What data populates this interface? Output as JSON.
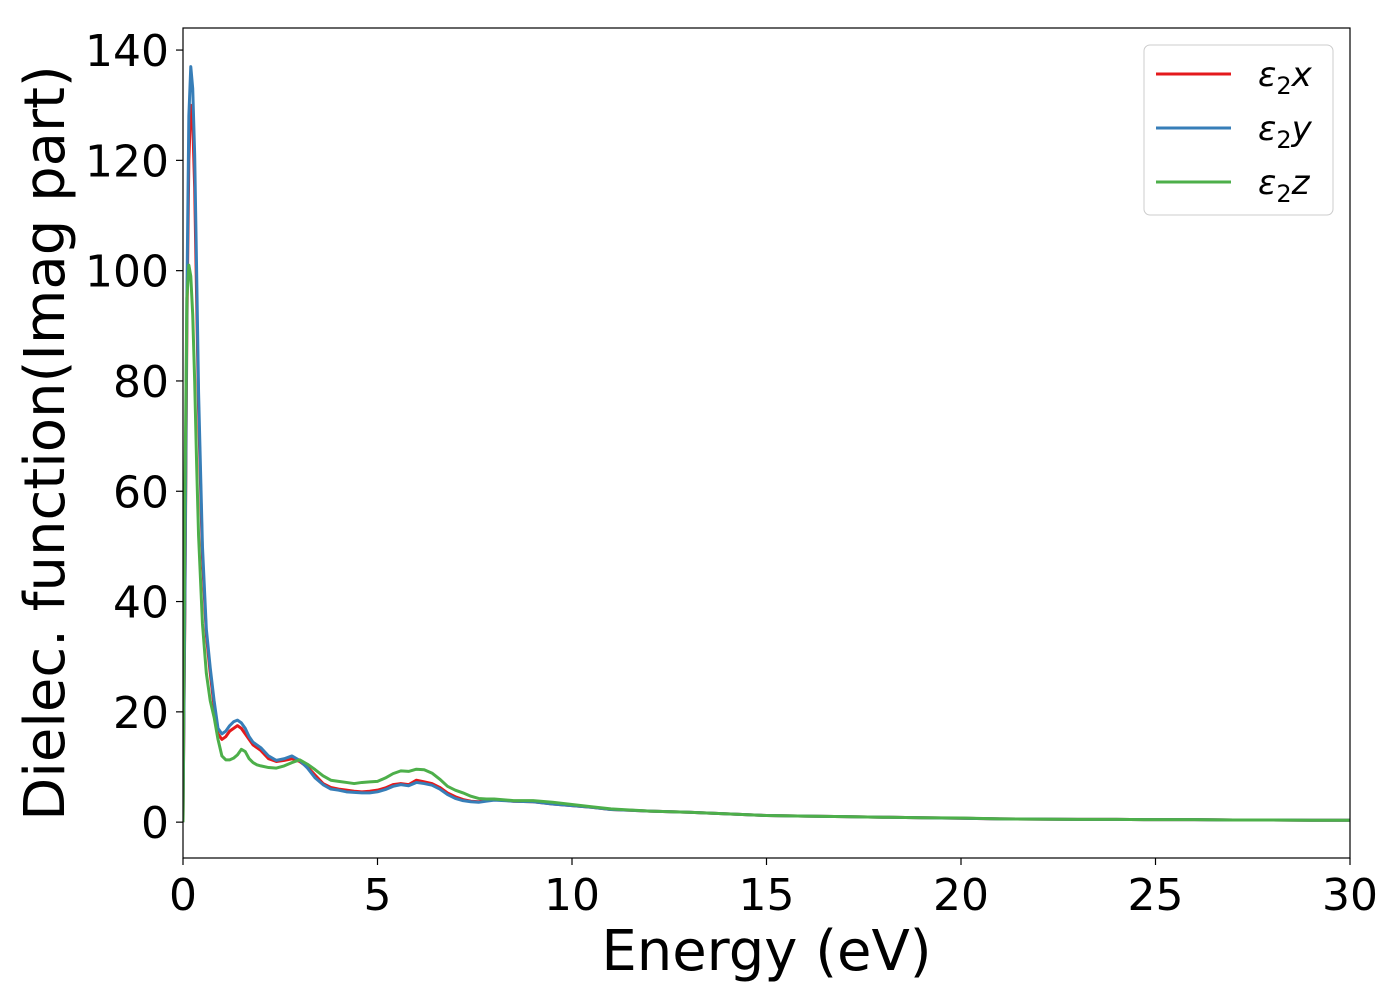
{
  "chart_data": {
    "type": "line",
    "xlabel": "Energy (eV)",
    "ylabel": "Dielec. function(Imag part)",
    "xlim": [
      0,
      30
    ],
    "ylim": [
      -6.5,
      144
    ],
    "xticks": [
      0,
      5,
      10,
      15,
      20,
      25,
      30
    ],
    "yticks": [
      0,
      20,
      40,
      60,
      80,
      100,
      120,
      140
    ],
    "legend_position": "top-right",
    "series": [
      {
        "name": "ε2x",
        "legend_base": "ε",
        "legend_sub": "2",
        "legend_suffix": "x",
        "color": "#e41a1c",
        "x": [
          0,
          0.05,
          0.1,
          0.15,
          0.2,
          0.25,
          0.3,
          0.35,
          0.4,
          0.5,
          0.6,
          0.7,
          0.8,
          0.9,
          1.0,
          1.1,
          1.2,
          1.3,
          1.4,
          1.5,
          1.6,
          1.7,
          1.8,
          1.9,
          2.0,
          2.2,
          2.4,
          2.6,
          2.8,
          3.0,
          3.2,
          3.4,
          3.6,
          3.8,
          4.0,
          4.2,
          4.4,
          4.6,
          4.8,
          5.0,
          5.2,
          5.4,
          5.6,
          5.8,
          6.0,
          6.2,
          6.4,
          6.6,
          6.8,
          7.0,
          7.2,
          7.4,
          7.6,
          7.8,
          8.0,
          8.5,
          9.0,
          9.5,
          10.0,
          10.5,
          11,
          12,
          13,
          14,
          15,
          16,
          17,
          18,
          19,
          20,
          21,
          22,
          23,
          24,
          25,
          26,
          27,
          28,
          29,
          30
        ],
        "y": [
          0,
          40,
          90,
          120,
          130,
          127,
          115,
          95,
          75,
          48,
          34,
          27,
          21,
          16,
          15,
          15.5,
          16.5,
          17,
          17.5,
          17,
          16,
          15,
          14,
          13.5,
          13,
          11.5,
          11,
          11.2,
          11.5,
          11,
          10,
          8.5,
          7,
          6.3,
          6.0,
          5.8,
          5.6,
          5.5,
          5.6,
          5.8,
          6.2,
          6.8,
          7.0,
          6.8,
          7.6,
          7.3,
          7.0,
          6.3,
          5.3,
          4.6,
          4.1,
          3.8,
          3.7,
          3.9,
          4.1,
          3.8,
          3.7,
          3.3,
          3.0,
          2.7,
          2.3,
          2.0,
          1.8,
          1.5,
          1.2,
          1.1,
          1.0,
          0.9,
          0.8,
          0.7,
          0.6,
          0.55,
          0.5,
          0.5,
          0.45,
          0.45,
          0.4,
          0.4,
          0.35,
          0.35
        ]
      },
      {
        "name": "ε2y",
        "legend_base": "ε",
        "legend_sub": "2",
        "legend_suffix": "y",
        "color": "#377eb8",
        "x": [
          0,
          0.05,
          0.1,
          0.15,
          0.2,
          0.25,
          0.3,
          0.35,
          0.4,
          0.5,
          0.6,
          0.7,
          0.8,
          0.9,
          1.0,
          1.1,
          1.2,
          1.3,
          1.4,
          1.5,
          1.6,
          1.7,
          1.8,
          1.9,
          2.0,
          2.2,
          2.4,
          2.6,
          2.8,
          3.0,
          3.2,
          3.4,
          3.6,
          3.8,
          4.0,
          4.2,
          4.4,
          4.6,
          4.8,
          5.0,
          5.2,
          5.4,
          5.6,
          5.8,
          6.0,
          6.2,
          6.4,
          6.6,
          6.8,
          7.0,
          7.2,
          7.4,
          7.6,
          7.8,
          8.0,
          8.5,
          9.0,
          9.5,
          10.0,
          10.5,
          11,
          12,
          13,
          14,
          15,
          16,
          17,
          18,
          19,
          20,
          21,
          22,
          23,
          24,
          25,
          26,
          27,
          28,
          29,
          30
        ],
        "y": [
          0,
          42,
          95,
          128,
          137,
          133,
          121,
          100,
          78,
          50,
          35,
          28,
          22,
          17,
          16,
          16.5,
          17.5,
          18.2,
          18.5,
          18,
          17,
          15.5,
          14.5,
          14,
          13.5,
          12,
          11.2,
          11.5,
          12,
          11.2,
          9.8,
          8.0,
          6.8,
          6.0,
          5.8,
          5.5,
          5.4,
          5.3,
          5.3,
          5.5,
          5.9,
          6.5,
          6.8,
          6.6,
          7.2,
          7.0,
          6.7,
          6.0,
          5.0,
          4.3,
          3.9,
          3.7,
          3.6,
          3.8,
          4.0,
          3.8,
          3.7,
          3.3,
          3.0,
          2.7,
          2.3,
          2.0,
          1.8,
          1.5,
          1.2,
          1.1,
          1.0,
          0.9,
          0.8,
          0.7,
          0.6,
          0.55,
          0.5,
          0.5,
          0.45,
          0.45,
          0.4,
          0.4,
          0.35,
          0.35
        ]
      },
      {
        "name": "ε2z",
        "legend_base": "ε",
        "legend_sub": "2",
        "legend_suffix": "z",
        "color": "#4daf4a",
        "x": [
          0,
          0.05,
          0.1,
          0.15,
          0.2,
          0.25,
          0.3,
          0.35,
          0.4,
          0.5,
          0.6,
          0.7,
          0.8,
          0.9,
          1.0,
          1.1,
          1.2,
          1.3,
          1.4,
          1.5,
          1.6,
          1.7,
          1.8,
          1.9,
          2.0,
          2.2,
          2.4,
          2.6,
          2.8,
          3.0,
          3.2,
          3.4,
          3.6,
          3.8,
          4.0,
          4.2,
          4.4,
          4.6,
          4.8,
          5.0,
          5.2,
          5.4,
          5.6,
          5.8,
          6.0,
          6.2,
          6.4,
          6.6,
          6.8,
          7.0,
          7.2,
          7.4,
          7.6,
          7.8,
          8.0,
          8.5,
          9.0,
          9.5,
          10.0,
          10.5,
          11,
          12,
          13,
          14,
          15,
          16,
          17,
          18,
          19,
          20,
          21,
          22,
          23,
          24,
          25,
          26,
          27,
          28,
          29,
          30
        ],
        "y": [
          0,
          60,
          95,
          101,
          99,
          92,
          80,
          65,
          52,
          36,
          27,
          22,
          19,
          15,
          12,
          11.3,
          11.3,
          11.6,
          12.2,
          13.2,
          12.8,
          11.5,
          10.8,
          10.4,
          10.2,
          9.9,
          9.8,
          10.2,
          10.8,
          11.3,
          10.5,
          9.5,
          8.4,
          7.6,
          7.4,
          7.2,
          7.0,
          7.2,
          7.3,
          7.4,
          8.0,
          8.8,
          9.3,
          9.2,
          9.6,
          9.5,
          8.9,
          7.8,
          6.5,
          5.8,
          5.3,
          4.7,
          4.3,
          4.2,
          4.2,
          3.9,
          3.9,
          3.6,
          3.2,
          2.8,
          2.4,
          2.0,
          1.8,
          1.5,
          1.2,
          1.1,
          1.0,
          0.9,
          0.8,
          0.75,
          0.6,
          0.55,
          0.5,
          0.5,
          0.45,
          0.45,
          0.4,
          0.4,
          0.35,
          0.35
        ]
      }
    ]
  }
}
